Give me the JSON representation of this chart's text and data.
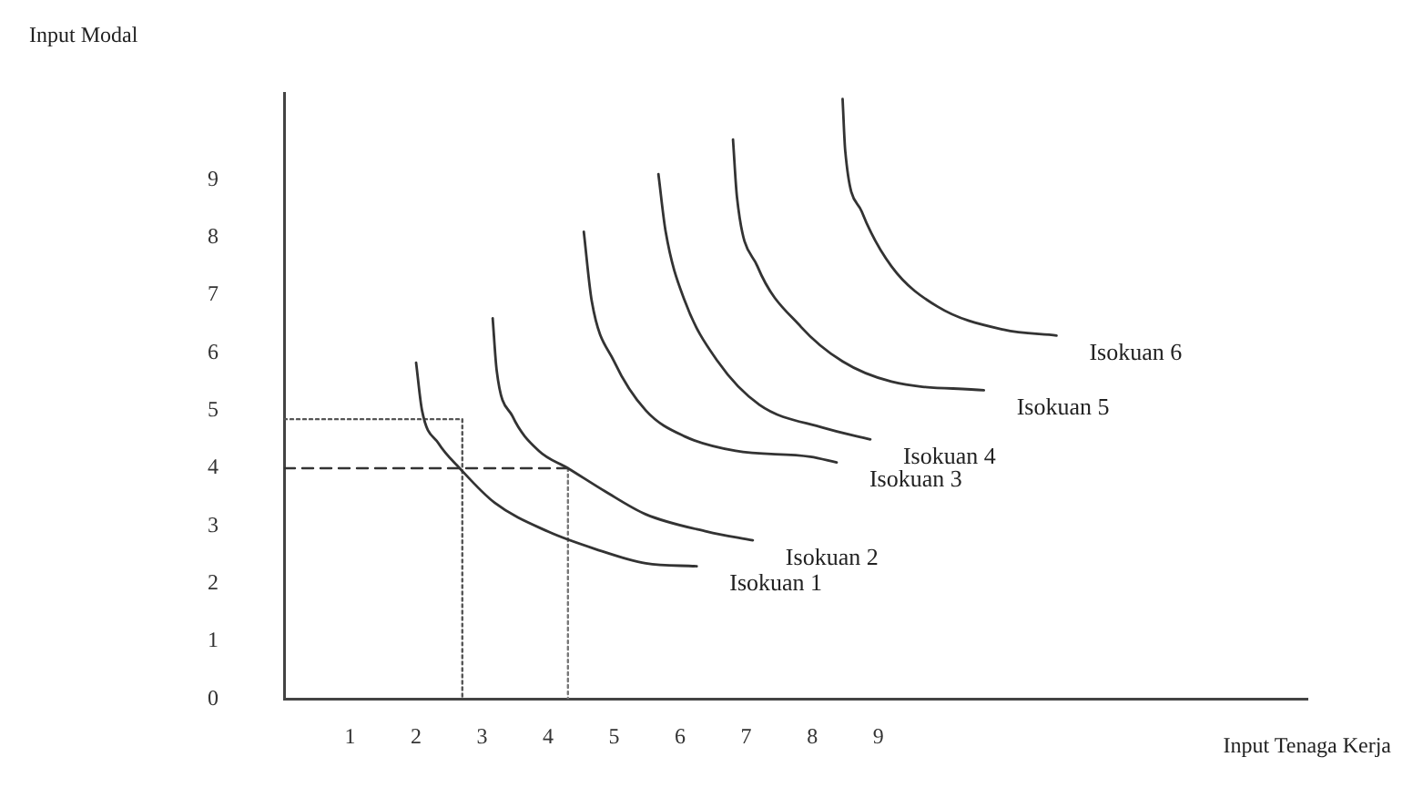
{
  "chart_data": {
    "type": "line",
    "xlabel": "Input Tenaga Kerja",
    "ylabel": "Input Modal",
    "xlim": [
      0,
      15.5
    ],
    "ylim": [
      0,
      10.5
    ],
    "xticks": [
      1,
      2,
      3,
      4,
      5,
      6,
      7,
      8,
      9
    ],
    "yticks": [
      0,
      1,
      2,
      3,
      4,
      5,
      6,
      7,
      8,
      9
    ],
    "grid": false,
    "legend": false,
    "marker": "none",
    "series": [
      {
        "name": "Isokuan 1",
        "color": "#333333",
        "x": [
          2.0,
          2.09,
          2.34,
          2.66,
          3.19,
          4.0,
          4.71,
          5.48,
          6.25
        ],
        "values": [
          5.83,
          5.0,
          4.43,
          4.0,
          3.4,
          2.9,
          2.6,
          2.35,
          2.3
        ]
      },
      {
        "name": "Isokuan 2",
        "color": "#333333",
        "x": [
          3.16,
          3.22,
          3.46,
          3.86,
          4.3,
          4.86,
          5.48,
          6.41,
          7.1
        ],
        "values": [
          6.6,
          5.7,
          4.9,
          4.3,
          4.0,
          3.6,
          3.2,
          2.9,
          2.75
        ]
      },
      {
        "name": "Isokuan 3",
        "color": "#333333",
        "x": [
          4.54,
          4.66,
          5.0,
          5.48,
          6.07,
          6.84,
          7.97,
          8.37
        ],
        "values": [
          8.1,
          6.9,
          5.85,
          5.0,
          4.55,
          4.3,
          4.2,
          4.1
        ]
      },
      {
        "name": "Isokuan 4",
        "color": "#333333",
        "x": [
          5.67,
          5.78,
          6.07,
          6.57,
          7.2,
          8.17,
          8.88
        ],
        "values": [
          9.1,
          8.1,
          6.9,
          5.85,
          5.1,
          4.7,
          4.5
        ]
      },
      {
        "name": "Isokuan 5",
        "color": "#333333",
        "x": [
          6.8,
          6.86,
          7.17,
          7.83,
          8.46,
          9.2,
          10.6
        ],
        "values": [
          9.7,
          8.7,
          7.5,
          6.45,
          5.85,
          5.5,
          5.35
        ]
      },
      {
        "name": "Isokuan 6",
        "color": "#333333",
        "x": [
          8.46,
          8.5,
          8.75,
          9.2,
          9.9,
          10.9,
          11.7
        ],
        "values": [
          10.4,
          9.5,
          8.45,
          7.5,
          6.8,
          6.4,
          6.3
        ]
      },
      {
        "color": "#555555",
        "line_style": "dotted",
        "x": [
          0,
          2.7,
          2.7
        ],
        "values": [
          4.85,
          4.85,
          0
        ]
      },
      {
        "color": "#333333",
        "line_style": "dashed",
        "x": [
          0,
          4.3
        ],
        "values": [
          4,
          4
        ]
      },
      {
        "color": "#777777",
        "line_style": "dotted",
        "x": [
          4.3,
          4.3
        ],
        "values": [
          4,
          0
        ]
      }
    ]
  }
}
